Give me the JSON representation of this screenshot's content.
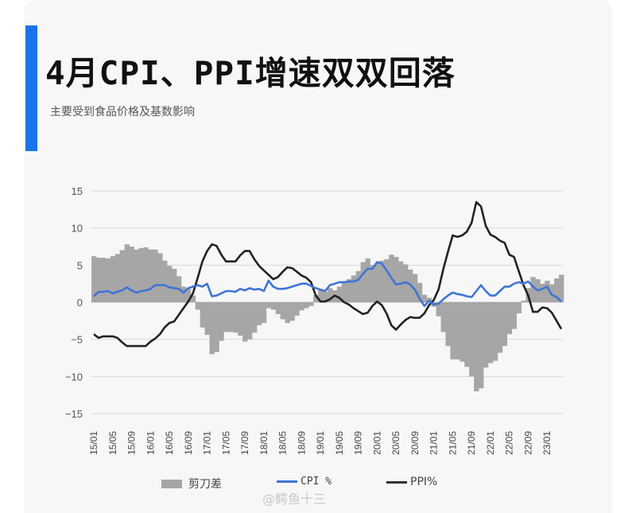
{
  "header": {
    "title": "4月CPI、PPI增速双双回落",
    "subtitle": "主要受到食品价格及基数影响"
  },
  "legend": {
    "gap_label": "剪刀差",
    "cpi_label": "CPI %",
    "ppi_label": "PPI%"
  },
  "watermark": "@鳄鱼十三",
  "colors": {
    "accent": "#1a73e8",
    "cpi": "#3f74d6",
    "ppi": "#222222",
    "gap": "#a6a6a6",
    "grid": "#d9d9d9"
  },
  "chart_data": {
    "type": "bar+line",
    "title": "4月CPI、PPI增速双双回落",
    "subtitle": "主要受到食品价格及基数影响",
    "xlabel": "",
    "ylabel": "",
    "ylim": [
      -15,
      15
    ],
    "yticks": [
      15,
      10,
      5,
      0,
      -5,
      -10,
      -15
    ],
    "grid": true,
    "legend_position": "bottom",
    "x_tick_labels": [
      "15/01",
      "15/05",
      "15/09",
      "16/01",
      "16/05",
      "16/09",
      "17/01",
      "17/05",
      "17/09",
      "18/01",
      "18/05",
      "18/09",
      "19/01",
      "19/05",
      "19/09",
      "20/01",
      "20/05",
      "20/09",
      "21/01",
      "21/05",
      "21/09",
      "22/01",
      "22/05",
      "22/09",
      "23/01"
    ],
    "x_start": "2015/01",
    "x_end": "2023/04",
    "frequency": "monthly",
    "series": [
      {
        "name": "CPI %",
        "type": "line",
        "values": [
          0.8,
          1.4,
          1.4,
          1.5,
          1.2,
          1.4,
          1.6,
          2.0,
          1.6,
          1.3,
          1.5,
          1.6,
          1.8,
          2.3,
          2.3,
          2.3,
          2.0,
          1.9,
          1.8,
          1.3,
          1.9,
          2.1,
          2.3,
          2.1,
          2.5,
          0.8,
          0.9,
          1.2,
          1.5,
          1.5,
          1.4,
          1.8,
          1.6,
          1.9,
          1.7,
          1.8,
          1.5,
          2.9,
          2.1,
          1.8,
          1.8,
          1.9,
          2.1,
          2.3,
          2.5,
          2.5,
          2.2,
          1.9,
          1.7,
          1.5,
          2.3,
          2.5,
          2.7,
          2.7,
          2.8,
          2.8,
          3.0,
          3.8,
          4.5,
          4.5,
          5.4,
          5.2,
          4.3,
          3.3,
          2.4,
          2.5,
          2.7,
          2.4,
          1.7,
          0.5,
          -0.5,
          0.2,
          -0.3,
          -0.2,
          0.4,
          0.9,
          1.3,
          1.1,
          1.0,
          0.8,
          0.7,
          1.5,
          2.3,
          1.5,
          0.9,
          0.9,
          1.5,
          2.1,
          2.1,
          2.5,
          2.7,
          2.5,
          2.8,
          2.1,
          1.6,
          1.8,
          2.1,
          1.0,
          0.7,
          0.1
        ],
        "color": "#3f74d6"
      },
      {
        "name": "PPI%",
        "type": "line",
        "values": [
          -4.3,
          -4.8,
          -4.6,
          -4.6,
          -4.6,
          -4.8,
          -5.4,
          -5.9,
          -5.9,
          -5.9,
          -5.9,
          -5.9,
          -5.3,
          -4.9,
          -4.3,
          -3.4,
          -2.8,
          -2.6,
          -1.7,
          -0.8,
          0.1,
          1.2,
          3.3,
          5.5,
          6.9,
          7.8,
          7.6,
          6.4,
          5.5,
          5.5,
          5.5,
          6.3,
          6.9,
          6.9,
          5.8,
          4.9,
          4.3,
          3.7,
          3.1,
          3.4,
          4.1,
          4.7,
          4.6,
          4.1,
          3.6,
          3.3,
          2.7,
          0.9,
          0.1,
          0.1,
          0.4,
          0.9,
          0.6,
          0.0,
          -0.3,
          -0.8,
          -1.2,
          -1.6,
          -1.4,
          -0.5,
          0.1,
          -0.4,
          -1.5,
          -3.1,
          -3.7,
          -3.0,
          -2.4,
          -2.0,
          -2.1,
          -2.1,
          -1.5,
          -0.4,
          0.3,
          1.7,
          4.4,
          6.8,
          9.0,
          8.8,
          9.0,
          9.5,
          10.7,
          13.5,
          12.9,
          10.3,
          9.1,
          8.8,
          8.3,
          8.0,
          6.4,
          6.1,
          4.2,
          2.3,
          0.9,
          -1.3,
          -1.3,
          -0.7,
          -0.8,
          -1.4,
          -2.5,
          -3.6
        ],
        "color": "#222222"
      },
      {
        "name": "剪刀差",
        "type": "bar",
        "values": [
          6.2,
          6.0,
          6.0,
          5.9,
          6.2,
          6.5,
          7.0,
          7.8,
          7.5,
          7.1,
          7.3,
          7.4,
          7.1,
          7.1,
          6.6,
          5.6,
          4.9,
          4.5,
          3.5,
          2.1,
          1.8,
          0.9,
          -1.0,
          -3.4,
          -4.4,
          -7.0,
          -6.7,
          -5.2,
          -4.0,
          -4.0,
          -4.1,
          -4.5,
          -5.3,
          -5.0,
          -4.1,
          -3.1,
          -2.8,
          -0.8,
          -1.0,
          -1.6,
          -2.3,
          -2.8,
          -2.5,
          -1.8,
          -1.1,
          -0.8,
          -0.5,
          1.0,
          1.6,
          1.4,
          1.9,
          1.6,
          2.1,
          2.7,
          3.1,
          3.6,
          4.2,
          5.4,
          5.9,
          5.0,
          5.3,
          5.6,
          5.8,
          6.4,
          6.1,
          5.5,
          5.1,
          4.4,
          3.8,
          2.6,
          1.0,
          0.6,
          -0.6,
          -1.9,
          -4.0,
          -5.9,
          -7.7,
          -7.7,
          -8.0,
          -8.7,
          -10.0,
          -12.0,
          -11.6,
          -8.8,
          -8.2,
          -7.9,
          -6.8,
          -5.9,
          -4.3,
          -3.6,
          -1.5,
          0.2,
          1.9,
          3.4,
          3.1,
          2.5,
          2.9,
          2.4,
          3.2,
          3.7
        ],
        "color": "#a6a6a6"
      }
    ]
  }
}
